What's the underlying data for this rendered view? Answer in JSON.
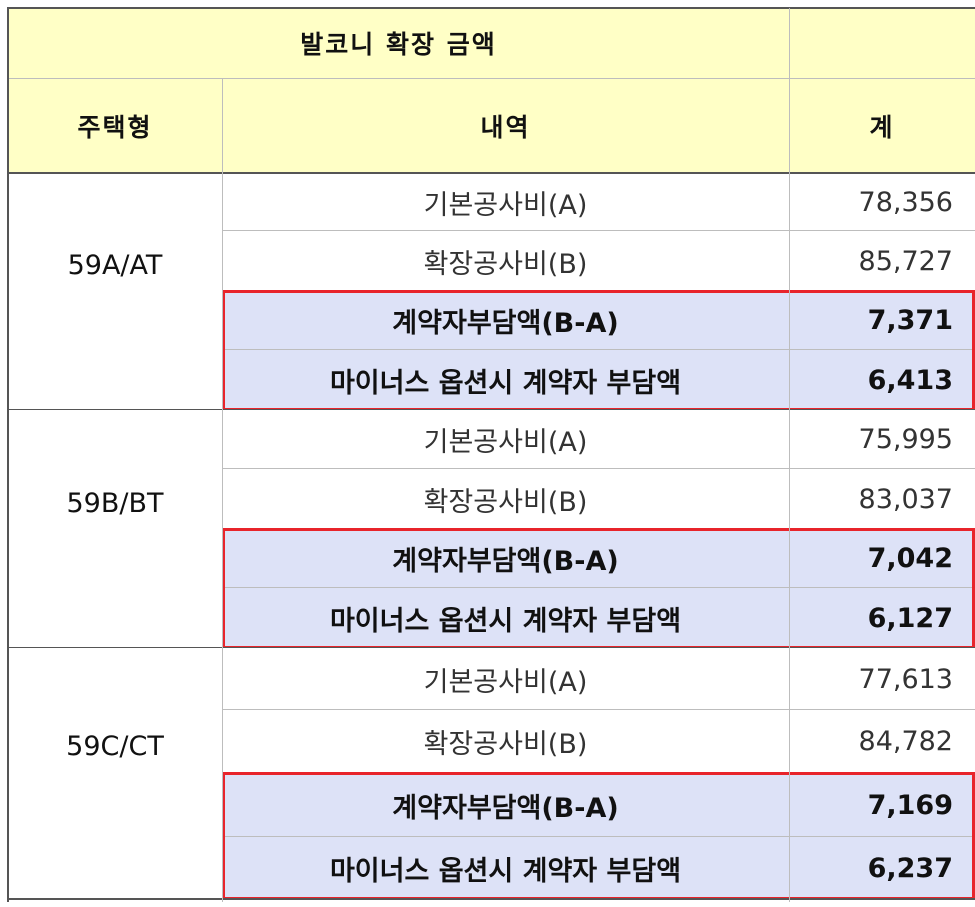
{
  "header": {
    "title": "발코니 확장 금액",
    "col_type": "주택형",
    "col_desc": "내역",
    "col_total": "계"
  },
  "groups": [
    {
      "type": "59A/AT",
      "rows": [
        {
          "label": "기본공사비(A)",
          "value": "78,356"
        },
        {
          "label": "확장공사비(B)",
          "value": "85,727"
        },
        {
          "label": "계약자부담액(B-A)",
          "value": "7,371"
        },
        {
          "label": "마이너스 옵션시 계약자 부담액",
          "value": "6,413"
        }
      ]
    },
    {
      "type": "59B/BT",
      "rows": [
        {
          "label": "기본공사비(A)",
          "value": "75,995"
        },
        {
          "label": "확장공사비(B)",
          "value": "83,037"
        },
        {
          "label": "계약자부담액(B-A)",
          "value": "7,042"
        },
        {
          "label": "마이너스 옵션시 계약자 부담액",
          "value": "6,127"
        }
      ]
    },
    {
      "type": "59C/CT",
      "rows": [
        {
          "label": "기본공사비(A)",
          "value": "77,613"
        },
        {
          "label": "확장공사비(B)",
          "value": "84,782"
        },
        {
          "label": "계약자부담액(B-A)",
          "value": "7,169"
        },
        {
          "label": "마이너스 옵션시 계약자 부담액",
          "value": "6,237"
        }
      ]
    }
  ],
  "colors": {
    "header_fill": "#ffffc6",
    "highlight_fill": "#dde2f7",
    "highlight_border": "#e8242b"
  }
}
